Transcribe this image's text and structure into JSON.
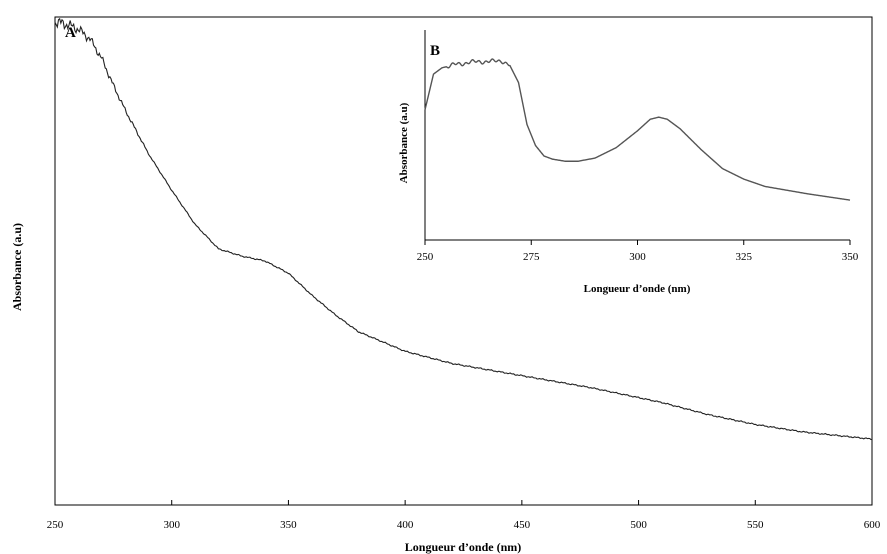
{
  "chart_data": [
    {
      "panel": "A",
      "type": "line",
      "xlabel": "Longueur d’onde (nm)",
      "ylabel": "Absorbance (a.u)",
      "xlim": [
        250,
        600
      ],
      "x_ticks": [
        "250",
        "300",
        "350",
        "400",
        "450",
        "500",
        "550",
        "600"
      ],
      "y_ticks": [],
      "grid": false,
      "series": [
        {
          "x": [
            250,
            255,
            260,
            265,
            270,
            275,
            280,
            290,
            300,
            310,
            320,
            330,
            340,
            350,
            360,
            370,
            380,
            400,
            420,
            450,
            480,
            510,
            530,
            550,
            570,
            600
          ],
          "y": [
            0.99,
            0.985,
            0.975,
            0.955,
            0.915,
            0.86,
            0.81,
            0.72,
            0.645,
            0.575,
            0.525,
            0.51,
            0.5,
            0.475,
            0.43,
            0.39,
            0.355,
            0.315,
            0.29,
            0.265,
            0.24,
            0.21,
            0.185,
            0.165,
            0.15,
            0.135
          ]
        }
      ]
    },
    {
      "panel": "B",
      "type": "line",
      "xlabel": "Longueur d’onde (nm)",
      "ylabel": "Absorbance (a.u)",
      "xlim": [
        250,
        350
      ],
      "x_ticks": [
        "250",
        "275",
        "300",
        "325",
        "350"
      ],
      "y_ticks": [],
      "grid": false,
      "series": [
        {
          "x": [
            250,
            252,
            254,
            257,
            260,
            263,
            266,
            268,
            270,
            272,
            274,
            276,
            278,
            280,
            283,
            286,
            290,
            295,
            300,
            303,
            305,
            307,
            310,
            315,
            320,
            325,
            330,
            340,
            350
          ],
          "y": [
            0.62,
            0.79,
            0.82,
            0.835,
            0.845,
            0.85,
            0.85,
            0.855,
            0.83,
            0.75,
            0.55,
            0.45,
            0.4,
            0.385,
            0.375,
            0.375,
            0.39,
            0.44,
            0.52,
            0.575,
            0.585,
            0.575,
            0.53,
            0.43,
            0.34,
            0.29,
            0.255,
            0.22,
            0.19
          ]
        }
      ]
    }
  ]
}
